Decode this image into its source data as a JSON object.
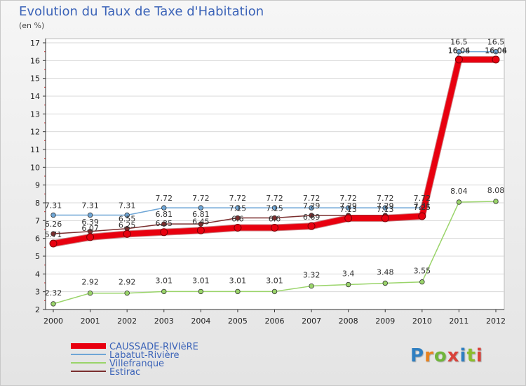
{
  "title": "Evolution du Taux de Taxe d'Habitation",
  "subtitle": "(en %)",
  "logo": "Proxiti",
  "colors": {
    "grid": "#d8d8d8",
    "axis": "#333333"
  },
  "chart_data": {
    "type": "line",
    "title": "Evolution du Taux de Taxe d'Habitation",
    "ylabel": "(en %)",
    "ylim": [
      2,
      17
    ],
    "yticks": [
      2,
      3,
      4,
      5,
      6,
      7,
      8,
      9,
      10,
      11,
      12,
      13,
      14,
      15,
      16,
      17
    ],
    "categories": [
      "2000",
      "2001",
      "2002",
      "2003",
      "2004",
      "2005",
      "2006",
      "2007",
      "2008",
      "2009",
      "2010",
      "2011",
      "2012"
    ],
    "legend_position": "bottom-left",
    "grid": "horizontal",
    "series": [
      {
        "name": "CAUSSADE-RIVIèRE",
        "color": "#e8000f",
        "values": [
          5.71,
          6.07,
          6.25,
          6.35,
          6.45,
          6.6,
          6.6,
          6.69,
          7.13,
          7.13,
          7.25,
          16.06,
          16.06
        ],
        "labels": [
          "5.71",
          "6.07",
          "6.25",
          "6.35",
          "6.45",
          "6.6",
          "6.6",
          "6.69",
          "7.13",
          "7.13",
          "7.25",
          "16.06",
          "16.06"
        ]
      },
      {
        "name": "Labatut-Rivière",
        "color": "#6fa6d6",
        "values": [
          7.31,
          7.31,
          7.31,
          7.72,
          7.72,
          7.72,
          7.72,
          7.72,
          7.72,
          7.72,
          7.72,
          16.5,
          16.5
        ],
        "labels": [
          "7.31",
          "7.31",
          "7.31",
          "7.72",
          "7.72",
          "7.72",
          "7.72",
          "7.72",
          "7.72",
          "7.72",
          "7.72",
          "16.5",
          "16.5"
        ]
      },
      {
        "name": "Villefranque",
        "color": "#9ad46a",
        "values": [
          2.32,
          2.92,
          2.92,
          3.01,
          3.01,
          3.01,
          3.01,
          3.32,
          3.4,
          3.48,
          3.55,
          8.04,
          8.08
        ],
        "labels": [
          "2.32",
          "2.92",
          "2.92",
          "3.01",
          "3.01",
          "3.01",
          "3.01",
          "3.32",
          "3.4",
          "3.48",
          "3.55",
          "8.04",
          "8.08"
        ]
      },
      {
        "name": "Estirac",
        "color": "#7a2e2e",
        "values": [
          6.26,
          6.39,
          6.55,
          6.81,
          6.81,
          7.15,
          7.15,
          7.29,
          7.29,
          7.29,
          7.31,
          16.04,
          16.04
        ],
        "labels": [
          "6.26",
          "6.39",
          "6.55",
          "6.81",
          "6.81",
          "7.15",
          "7.15",
          "7.29",
          "7.29",
          "7.29",
          "7.31",
          "16.04",
          "16.04"
        ]
      }
    ]
  }
}
